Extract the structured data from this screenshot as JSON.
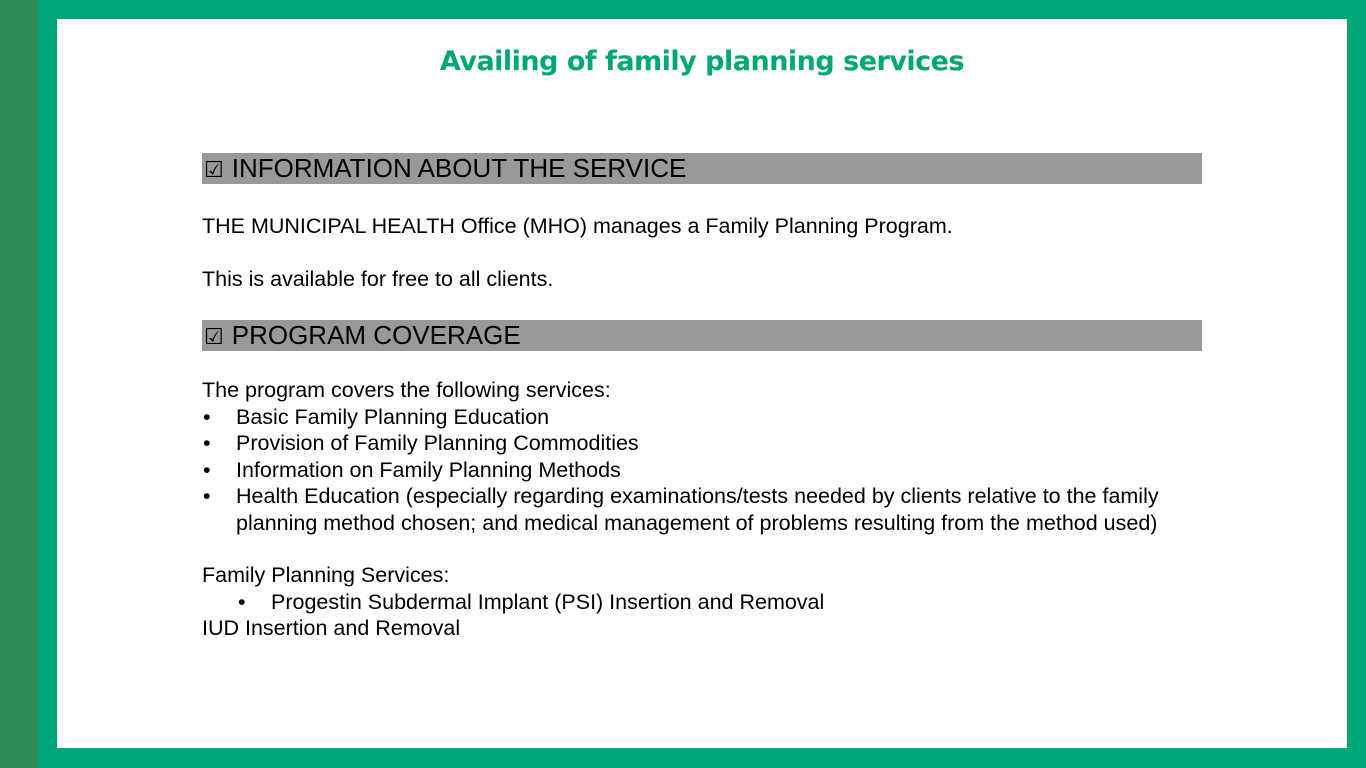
{
  "title": "Availing of family planning services",
  "colors": {
    "frame": "#00a776",
    "side_strip": "#2e8b57",
    "header_bar": "#999999",
    "title": "#00a776"
  },
  "section1": {
    "check_glyph": "☑",
    "header": "INFORMATION ABOUT THE SERVICE",
    "paragraphs": [
      "THE MUNICIPAL HEALTH Office (MHO) manages a Family Planning Program.",
      "This is available for free to all clients."
    ]
  },
  "section2": {
    "check_glyph": "☑",
    "header": "PROGRAM COVERAGE",
    "intro": "The program covers the following services:",
    "bullet_glyph": "•",
    "items": [
      "Basic Family Planning Education",
      "Provision of Family Planning Commodities",
      "Information on Family Planning Methods",
      "Health Education (especially regarding examinations/tests needed by clients relative to the family planning method chosen; and medical management of problems resulting from the method used)"
    ],
    "fp_services_label": "Family Planning Services:",
    "fp_services": [
      "Progestin Subdermal Implant (PSI) Insertion and Removal"
    ],
    "trailing_line": "IUD Insertion and Removal"
  }
}
